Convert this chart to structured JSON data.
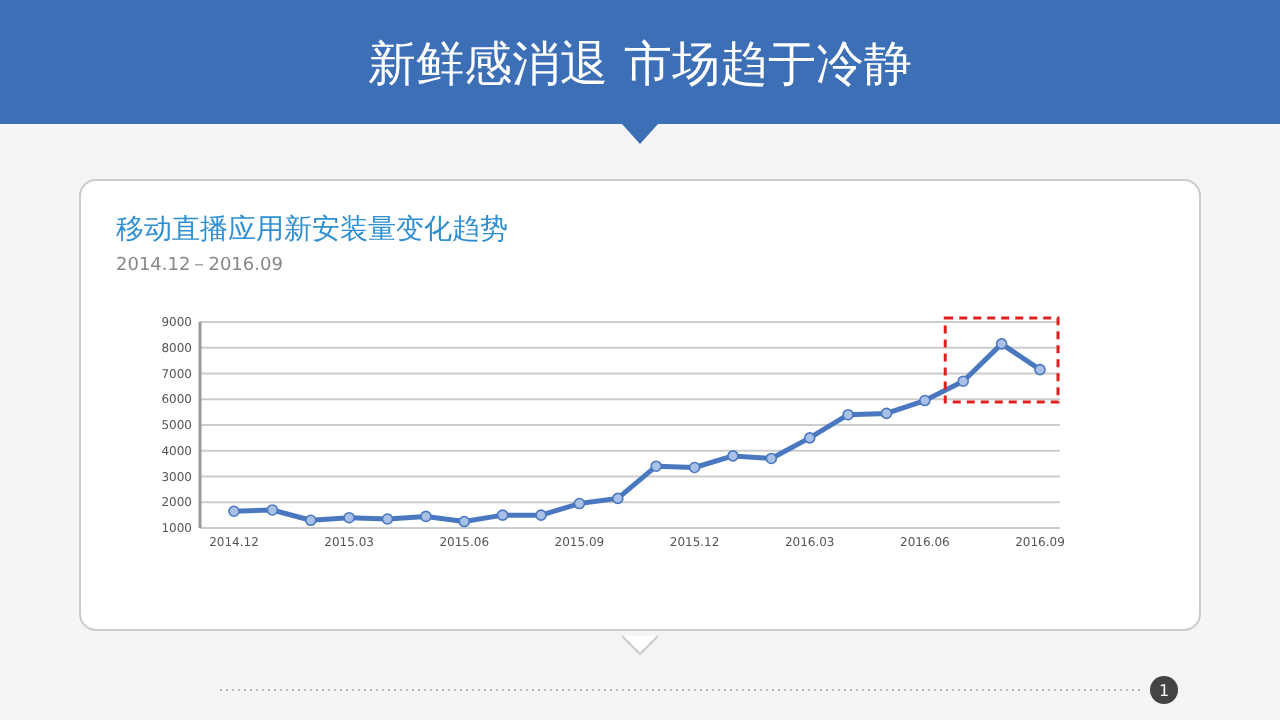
{
  "chart_data": {
    "type": "line",
    "title": "移动直播应用新安装量变化趋势",
    "subtitle": "2014.12－2016.09",
    "annotations": [
      "新鲜感消退 市场趋于冷静",
      "1"
    ],
    "categories": [
      "2014.12",
      null,
      null,
      "2015.03",
      null,
      null,
      "2015.06",
      null,
      null,
      "2015.09",
      null,
      null,
      "2015.12",
      null,
      null,
      "2016.03",
      null,
      null,
      "2016.06",
      null,
      null,
      "2016.09"
    ],
    "series": [
      {
        "color": "#4a78c0",
        "values": [
          1650,
          1700,
          1300,
          1400,
          1350,
          1450,
          1250,
          1500,
          1500,
          1950,
          2150,
          3400,
          3350,
          3800,
          3700,
          4500,
          5400,
          5450,
          5950,
          6700,
          8150,
          7150
        ]
      }
    ],
    "ylim": [
      1000,
      9000
    ],
    "yticks": [
      1000,
      2000,
      3000,
      4000,
      5000,
      6000,
      7000,
      8000,
      9000
    ],
    "grid": "y",
    "marker": "circle",
    "line_style": "solid"
  }
}
